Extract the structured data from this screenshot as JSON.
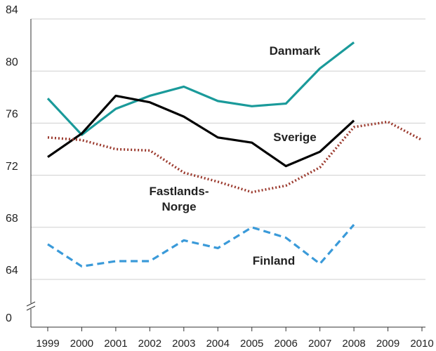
{
  "chart_data": {
    "type": "line",
    "categories": [
      "1999",
      "2000",
      "2001",
      "2002",
      "2003",
      "2004",
      "2005",
      "2006",
      "2007",
      "2008",
      "2009",
      "2010"
    ],
    "series": [
      {
        "name": "Danmark",
        "color": "#1a9a9a",
        "style": "solid",
        "values": [
          77.9,
          75.1,
          77.1,
          78.1,
          78.8,
          77.7,
          77.3,
          77.5,
          80.2,
          82.2,
          null,
          null
        ]
      },
      {
        "name": "Sverige",
        "color": "#000000",
        "style": "solid",
        "values": [
          73.4,
          75.2,
          78.1,
          77.6,
          76.5,
          74.9,
          74.5,
          72.7,
          73.8,
          76.2,
          null,
          null
        ]
      },
      {
        "name": "Fastlands-Norge",
        "color": "#9b3a2e",
        "style": "dotted",
        "values": [
          74.9,
          74.7,
          74.0,
          73.9,
          72.2,
          71.5,
          70.7,
          71.2,
          72.6,
          75.7,
          76.1,
          74.7
        ]
      },
      {
        "name": "Finland",
        "color": "#3a9ad9",
        "style": "dashed",
        "values": [
          66.7,
          65.0,
          65.4,
          65.4,
          67.0,
          66.4,
          68.0,
          67.2,
          65.2,
          68.2,
          null,
          null
        ]
      }
    ],
    "ylim": [
      0,
      84
    ],
    "yticks": [
      0,
      64,
      68,
      72,
      76,
      80,
      84
    ],
    "y_axis_break": true,
    "grid": true
  }
}
